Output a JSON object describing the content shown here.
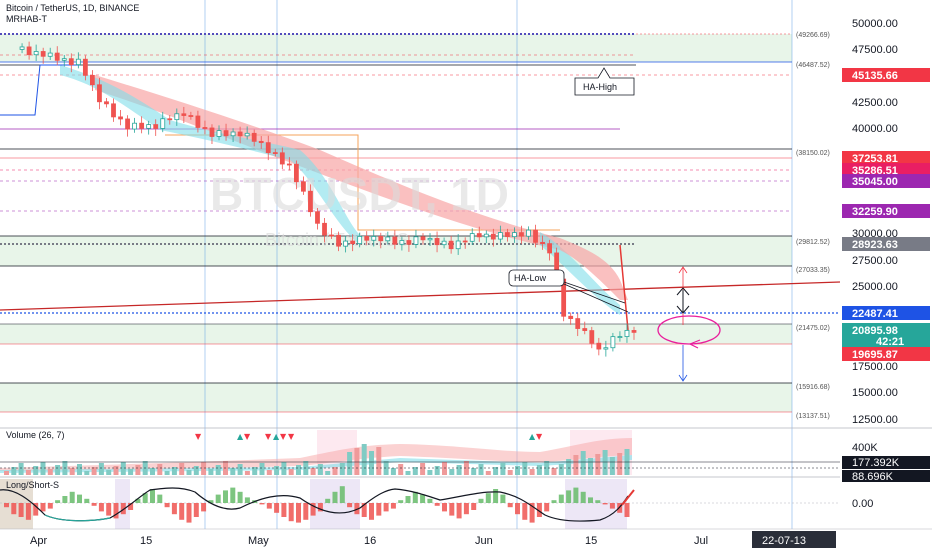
{
  "header": {
    "title": "Bitcoin / TetherUS, 1D, BINANCE",
    "indicator": "MRHAB-T"
  },
  "watermark": {
    "symbol": "BTCUSDT, 1D",
    "sub": "Bitcoin / TetherUS"
  },
  "volume_label": "Volume (26, 7)",
  "longshort_label": "Long/Short-S",
  "price_axis": {
    "ticks": [
      "50000.00",
      "47500.00",
      "42500.00",
      "40000.00",
      "30000.00",
      "27500.00",
      "25000.00",
      "17500.00",
      "15000.00",
      "12500.00"
    ],
    "badges": [
      {
        "label": "45135.66",
        "color": "#f23645"
      },
      {
        "label": "37253.81",
        "color": "#f23645"
      },
      {
        "label": "35286.51",
        "color": "#e91e63"
      },
      {
        "label": "35045.00",
        "color": "#9c27b0"
      },
      {
        "label": "32259.90",
        "color": "#9c27b0"
      },
      {
        "label": "28923.63",
        "color": "#787b86"
      },
      {
        "label": "22487.41",
        "color": "#1e53e5"
      },
      {
        "label": "20895.98",
        "color": "#26a69a"
      },
      {
        "label": "42:21",
        "color": "#26a69a"
      },
      {
        "label": "19695.87",
        "color": "#f23645"
      }
    ]
  },
  "level_labels": [
    "(49266.69)",
    "(46487.52)",
    "(38150.02)",
    "(29812.52)",
    "(27033.35)",
    "(21475.02)",
    "(15916.68)",
    "(13137.51)"
  ],
  "annotations": {
    "ha_high": "HA-High",
    "ha_low": "HA-Low"
  },
  "volume_axis": {
    "tick": "400K",
    "badge1": "177.392K",
    "badge2": "88.696K"
  },
  "osc_axis": {
    "tick": "0.00"
  },
  "time_axis": {
    "labels": [
      "Apr",
      "15",
      "May",
      "16",
      "Jun",
      "15",
      "Jul"
    ],
    "cursor": "22-07-13"
  },
  "chart_data": {
    "type": "candlestick",
    "title": "Bitcoin / TetherUS, 1D, BINANCE",
    "ylim": [
      11500,
      51500
    ],
    "ohlc_close_path": [
      [
        "2022-03-28",
        47500
      ],
      [
        "2022-04-01",
        46800
      ],
      [
        "2022-04-05",
        46300
      ],
      [
        "2022-04-08",
        42800
      ],
      [
        "2022-04-12",
        40100
      ],
      [
        "2022-04-16",
        40400
      ],
      [
        "2022-04-20",
        41500
      ],
      [
        "2022-04-24",
        39400
      ],
      [
        "2022-04-28",
        39700
      ],
      [
        "2022-05-01",
        38500
      ],
      [
        "2022-05-05",
        36500
      ],
      [
        "2022-05-09",
        31000
      ],
      [
        "2022-05-12",
        29000
      ],
      [
        "2022-05-16",
        29800
      ],
      [
        "2022-05-20",
        29300
      ],
      [
        "2022-05-24",
        29600
      ],
      [
        "2022-05-28",
        29000
      ],
      [
        "2022-06-01",
        30000
      ],
      [
        "2022-06-05",
        29900
      ],
      [
        "2022-06-08",
        30200
      ],
      [
        "2022-06-11",
        28400
      ],
      [
        "2022-06-13",
        22500
      ],
      [
        "2022-06-15",
        21500
      ],
      [
        "2022-06-18",
        19000
      ],
      [
        "2022-06-21",
        20700
      ],
      [
        "2022-06-23",
        20896
      ]
    ],
    "horizontal_levels": [
      49266.69,
      46487.52,
      45135.66,
      38150.02,
      37253.81,
      35286.51,
      35045.0,
      32259.9,
      29812.52,
      28923.63,
      27033.35,
      22487.41,
      21475.02,
      19695.87,
      15916.68,
      13137.51
    ],
    "last_price": 20895.98,
    "grid": true,
    "legend": "top-left"
  }
}
